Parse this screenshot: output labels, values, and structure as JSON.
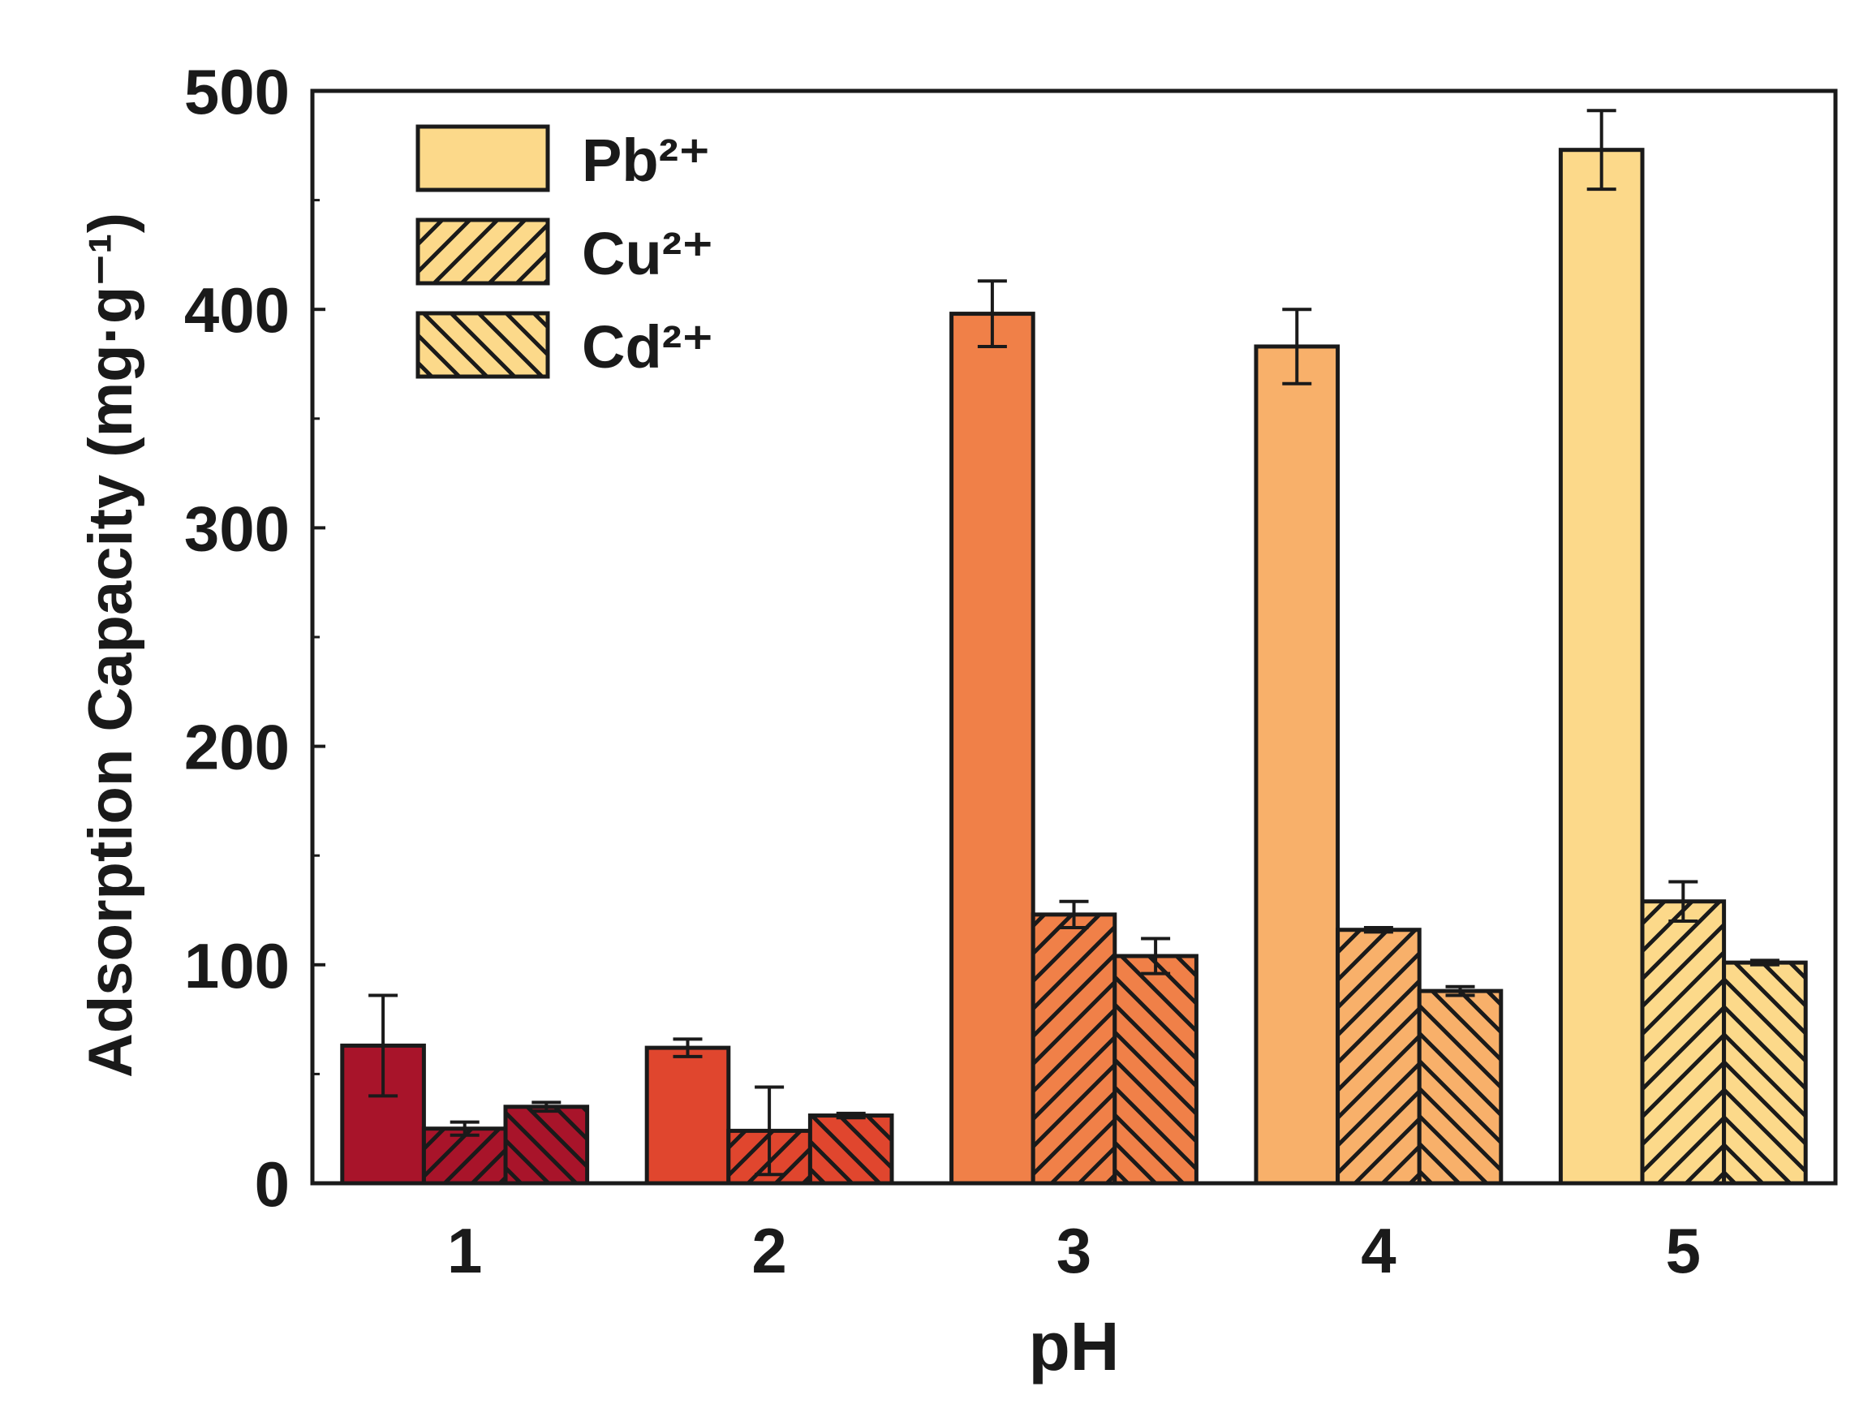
{
  "chart_data": {
    "type": "bar",
    "xlabel": "pH",
    "ylabel": "Adsorption Capacity (mg·g⁻¹)",
    "ylim": [
      0,
      500
    ],
    "yticks": [
      "0",
      "100",
      "200",
      "300",
      "400",
      "500"
    ],
    "categories": [
      "1",
      "2",
      "3",
      "4",
      "5"
    ],
    "category_colors": [
      "#a8142a",
      "#e0462e",
      "#f08048",
      "#f8b06a",
      "#fcd98a"
    ],
    "series": [
      {
        "name": "Pb²⁺",
        "pattern": "solid",
        "values": [
          63,
          62,
          398,
          383,
          473
        ],
        "errors": [
          23,
          4,
          15,
          17,
          18
        ]
      },
      {
        "name": "Cu²⁺",
        "pattern": "hatch-forward",
        "values": [
          25,
          24,
          123,
          116,
          129
        ],
        "errors": [
          3,
          20,
          6,
          1,
          9
        ]
      },
      {
        "name": "Cd²⁺",
        "pattern": "hatch-back",
        "values": [
          35,
          31,
          104,
          88,
          101
        ],
        "errors": [
          2,
          1,
          8,
          2,
          1
        ]
      }
    ],
    "legend_position": "top-left",
    "legend_color": "#fcd98a",
    "grid": false
  }
}
